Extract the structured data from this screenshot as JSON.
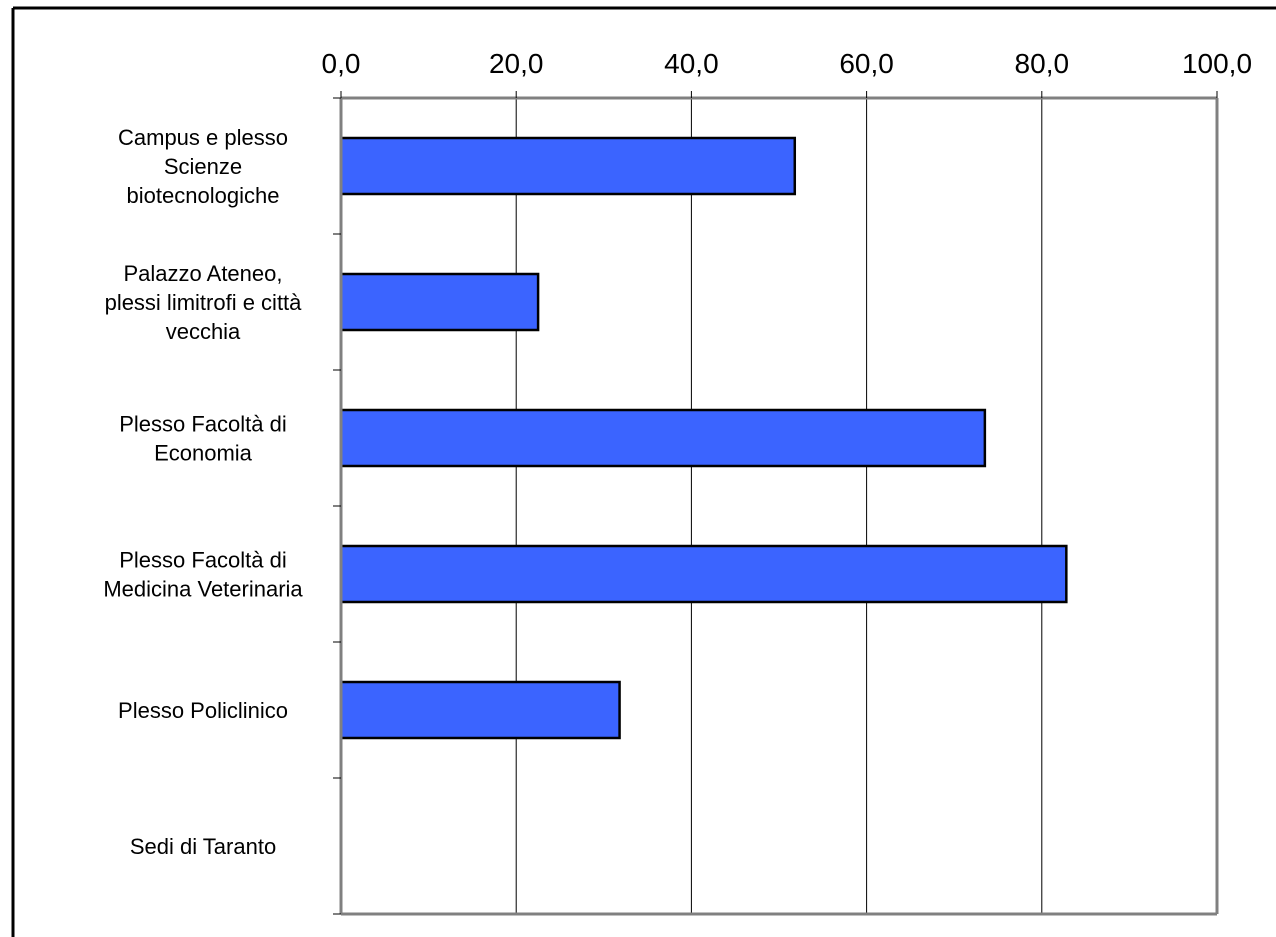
{
  "chart_data": {
    "type": "bar",
    "orientation": "horizontal",
    "categories": [
      "Campus e plesso Scienze biotecnologiche",
      "Palazzo Ateneo, plessi limitrofi e città vecchia",
      "Plesso Facoltà di Economia",
      "Plesso Facoltà di Medicina Veterinaria",
      "Plesso Policlinico",
      "Sedi di Taranto"
    ],
    "category_label_lines": [
      [
        "Campus e plesso",
        "Scienze",
        "biotecnologiche"
      ],
      [
        "Palazzo Ateneo,",
        "plessi limitrofi e città",
        "vecchia"
      ],
      [
        "Plesso Facoltà di",
        "Economia"
      ],
      [
        "Plesso Facoltà di",
        "Medicina Veterinaria"
      ],
      [
        "Plesso Policlinico"
      ],
      [
        "Sedi di Taranto"
      ]
    ],
    "values": [
      51.8,
      22.5,
      73.5,
      82.8,
      31.8,
      0
    ],
    "xlim": [
      0,
      100
    ],
    "ticks": [
      0,
      20,
      40,
      60,
      80,
      100
    ],
    "tick_labels": [
      "0,0",
      "20,0",
      "40,0",
      "60,0",
      "80,0",
      "100,0"
    ],
    "axis_position": "top",
    "grid": true,
    "legend": "none",
    "colors": {
      "bar": "#3b64ff",
      "bar_stroke": "#000000",
      "grid": "#000000",
      "plot_border": "#808080"
    }
  }
}
